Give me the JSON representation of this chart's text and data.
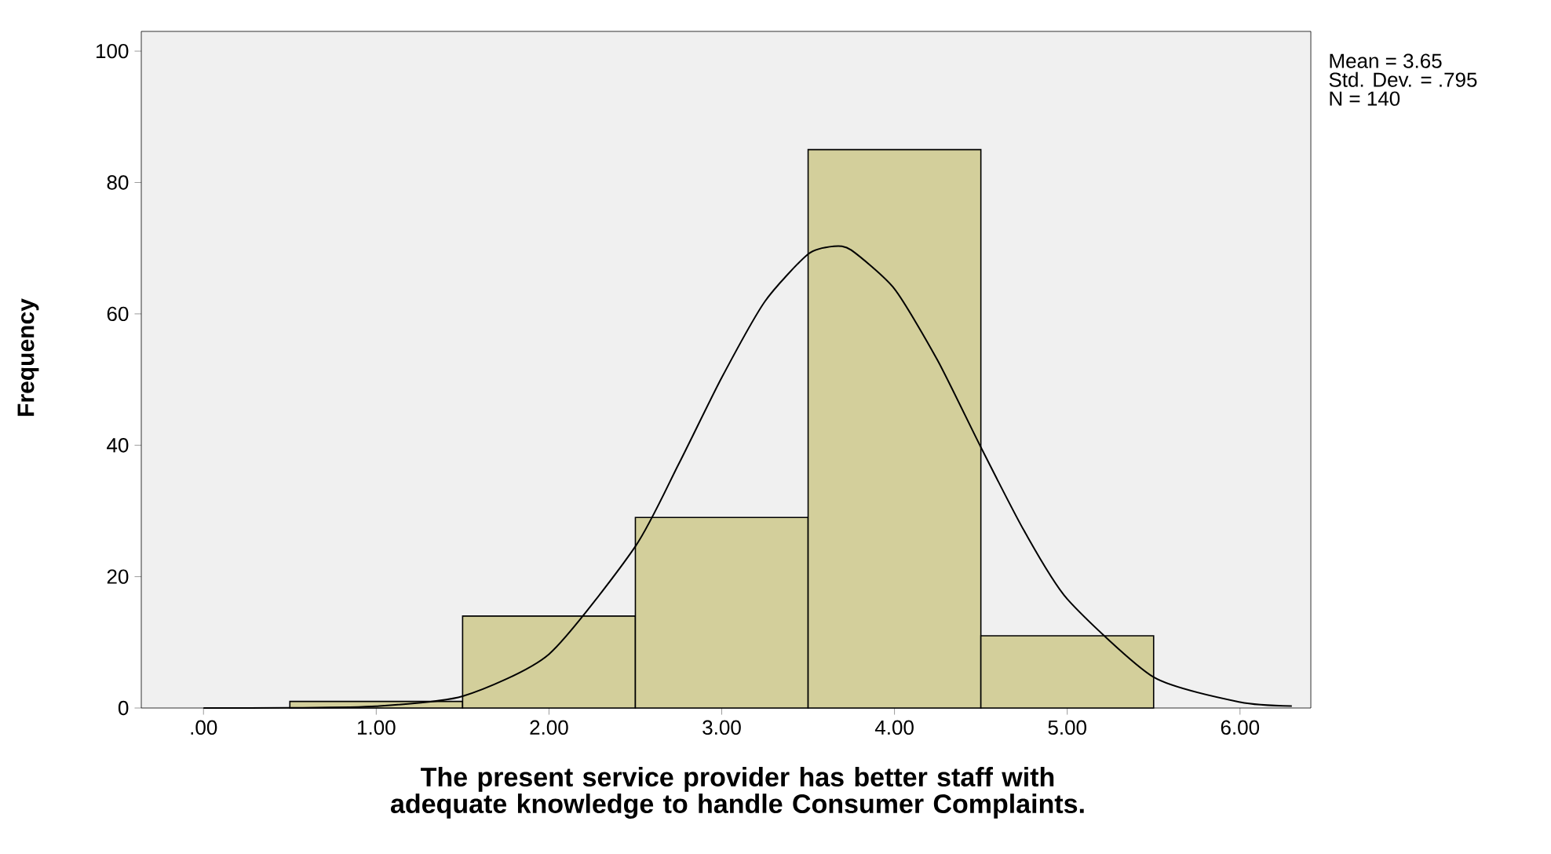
{
  "chart_data": {
    "type": "histogram",
    "xlabel": "The present service provider has better staff with adequate knowledge to handle Consumer Complaints.",
    "ylabel": "Frequency",
    "bins": [
      0.5,
      1.5,
      2.5,
      3.5,
      4.5,
      5.5
    ],
    "values": [
      1,
      14,
      29,
      85,
      11
    ],
    "color": "#d3cf9b",
    "series": [
      {
        "type": "line",
        "color": "#000000",
        "x": [
          0,
          0.5,
          1,
          1.5,
          2,
          2.5,
          2.75,
          3,
          3.25,
          3.5,
          3.65,
          3.75,
          4,
          4.25,
          4.5,
          4.75,
          5,
          5.5,
          6,
          6.3
        ],
        "values": [
          0,
          0.03,
          0.27,
          1.8,
          8.2,
          24.6,
          37.1,
          50.3,
          61.9,
          69.1,
          70.3,
          69.7,
          63.8,
          52.9,
          39.7,
          27,
          16.6,
          4.7,
          0.9,
          0.3
        ]
      }
    ],
    "xlim": [
      -0.36,
      6.41
    ],
    "ylim": [
      0,
      103
    ],
    "xticks": [
      {
        "value": 0,
        "label": ".00"
      },
      {
        "value": 1,
        "label": "1.00"
      },
      {
        "value": 2,
        "label": "2.00"
      },
      {
        "value": 3,
        "label": "3.00"
      },
      {
        "value": 4,
        "label": "4.00"
      },
      {
        "value": 5,
        "label": "5.00"
      },
      {
        "value": 6,
        "label": "6.00"
      }
    ],
    "yticks": [
      0,
      20,
      40,
      60,
      80,
      100
    ],
    "annotations": [
      "Mean = 3.65",
      "Std. Dev. = .795",
      "N = 140"
    ],
    "grid": false
  }
}
